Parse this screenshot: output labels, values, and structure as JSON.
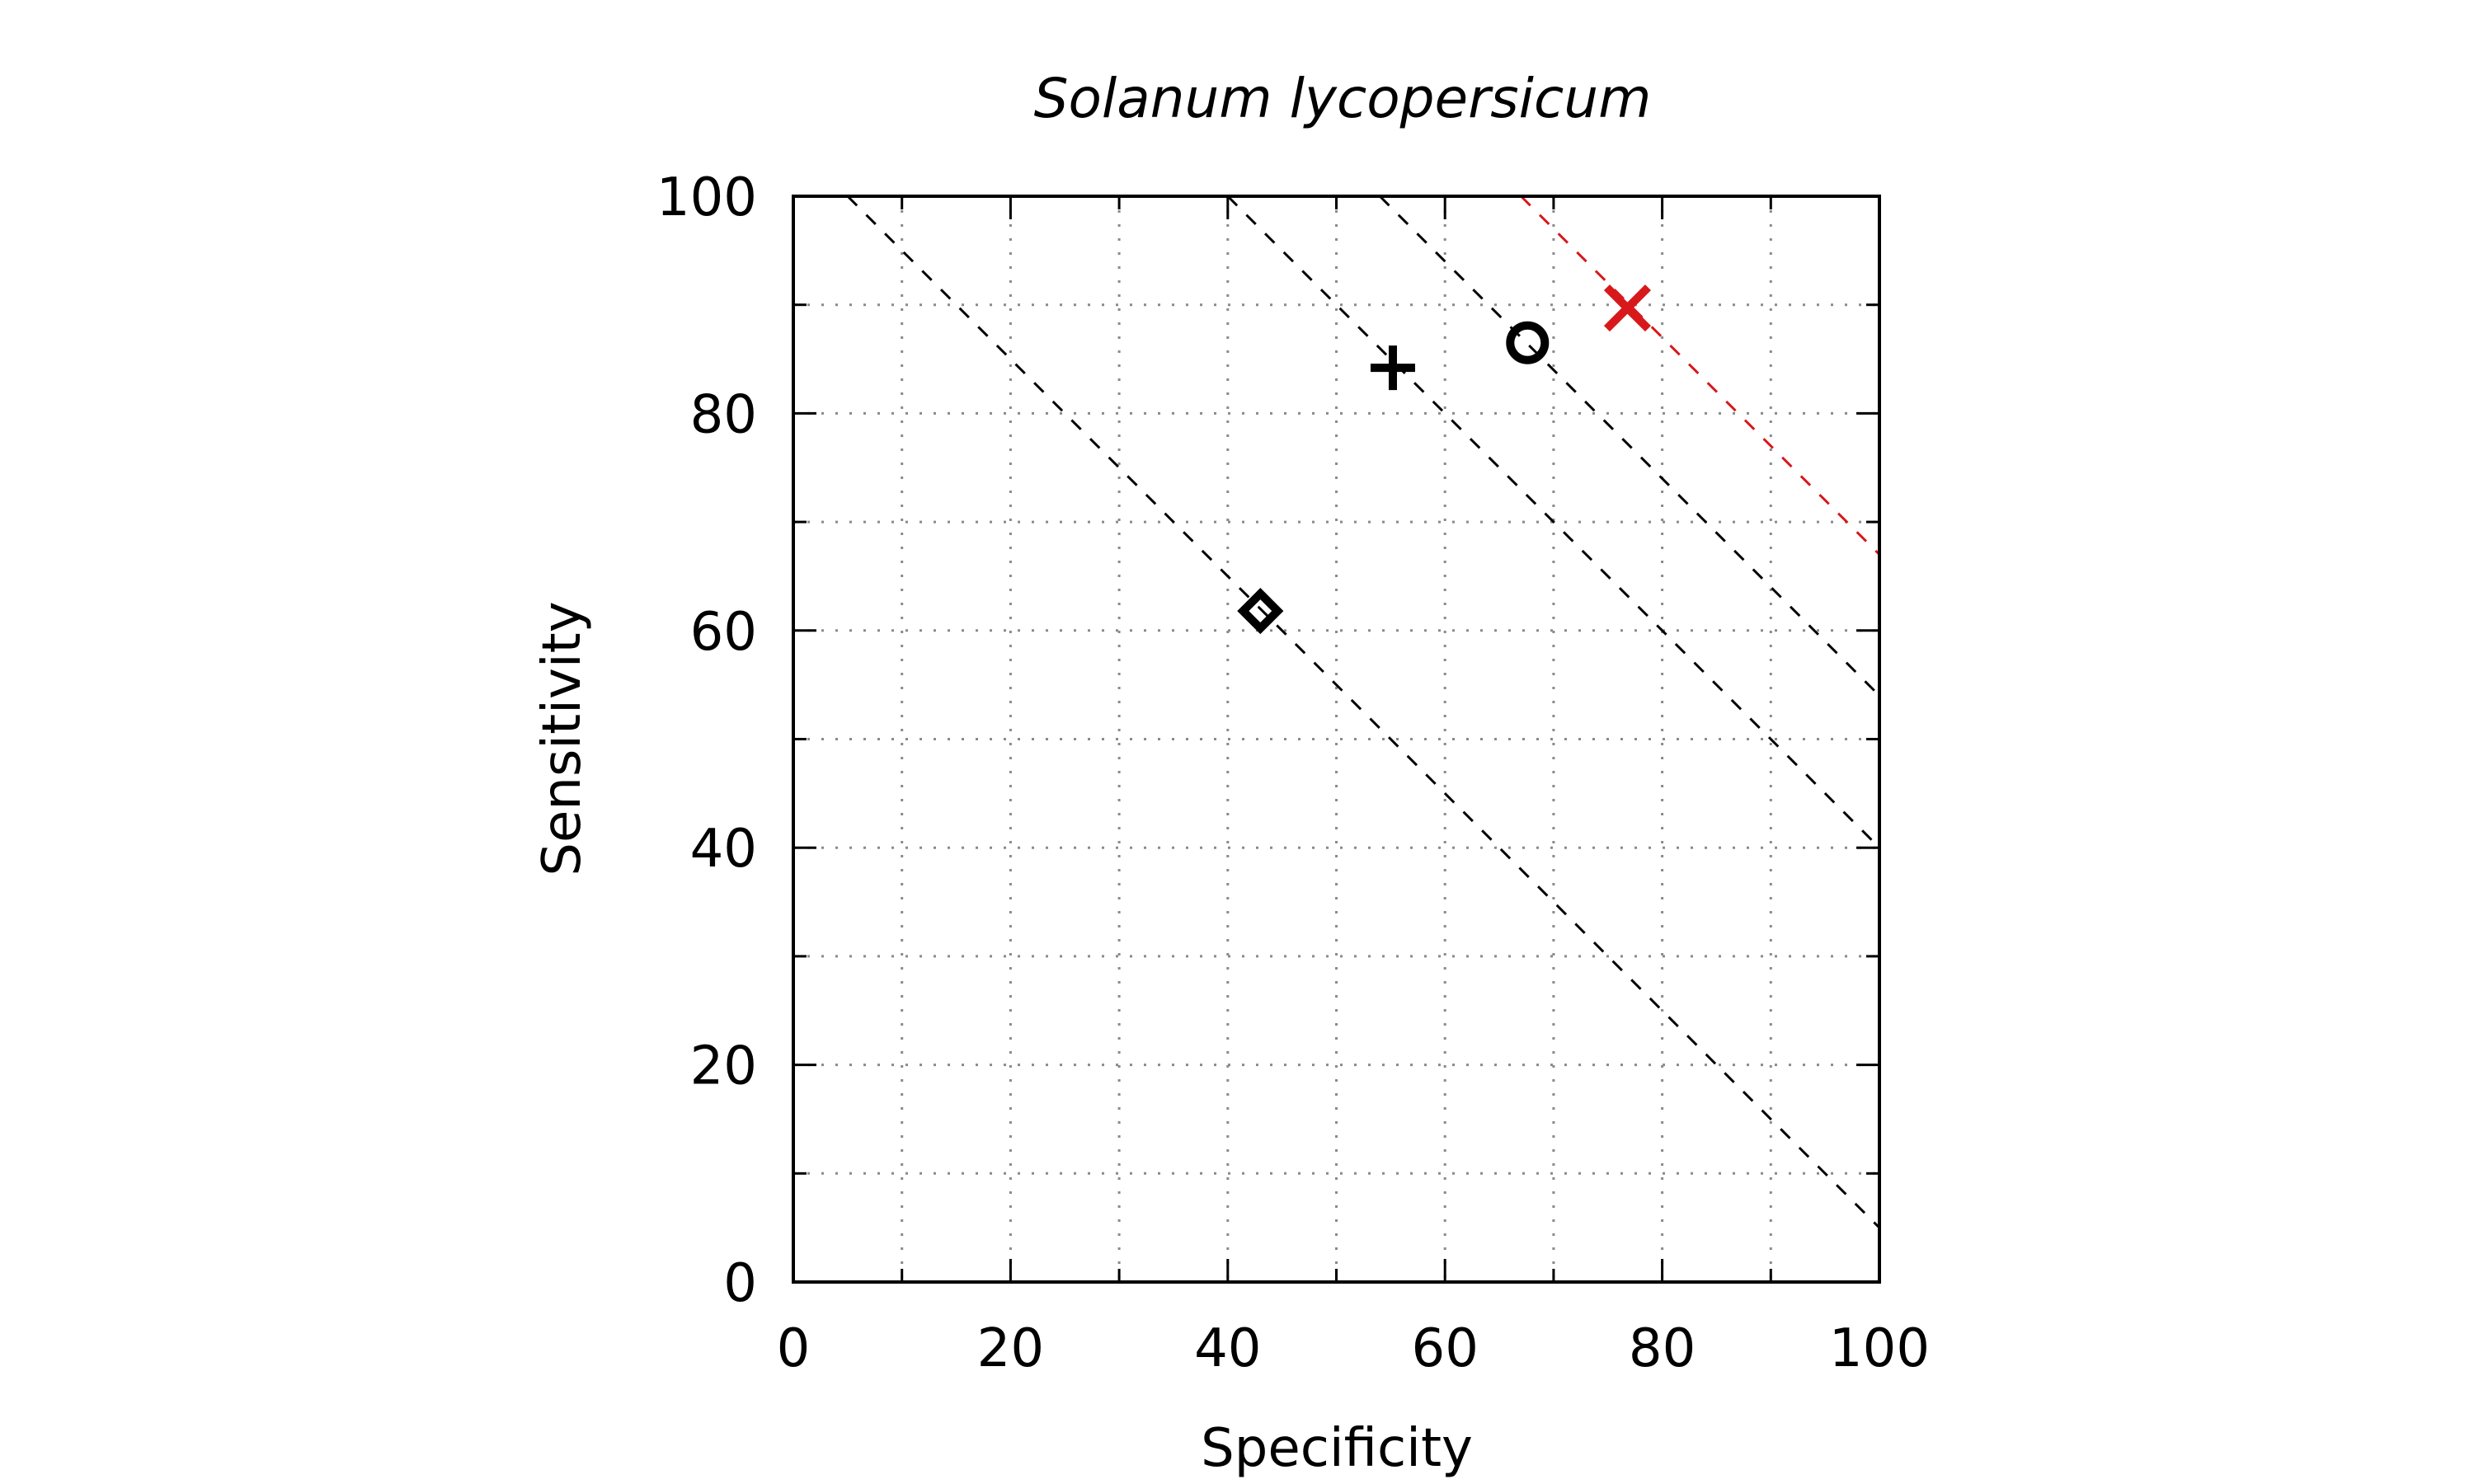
{
  "chart_data": {
    "type": "scatter",
    "title": "Solanum lycopersicum",
    "xlabel": "Specificity",
    "ylabel": "Sensitivity",
    "xlim": [
      0,
      100
    ],
    "ylim": [
      0,
      100
    ],
    "x_ticks": [
      0,
      20,
      40,
      60,
      80,
      100
    ],
    "y_ticks": [
      0,
      20,
      40,
      60,
      80,
      100
    ],
    "x_minor_ticks": [
      10,
      30,
      50,
      70,
      90
    ],
    "y_minor_ticks": [
      10,
      30,
      50,
      70,
      90
    ],
    "grid": true,
    "legend": "none",
    "points": [
      {
        "x": 43,
        "y": 61.8,
        "marker": "diamond",
        "color": "#000000"
      },
      {
        "x": 55.2,
        "y": 84.2,
        "marker": "plus",
        "color": "#000000"
      },
      {
        "x": 67.6,
        "y": 86.5,
        "marker": "circle",
        "color": "#000000"
      },
      {
        "x": 76.8,
        "y": 89.7,
        "marker": "cross",
        "color": "#d7191c"
      }
    ],
    "reference_lines": [
      {
        "points": [
          [
            5,
            100
          ],
          [
            100,
            5
          ]
        ],
        "color": "#000000",
        "style": "dashed"
      },
      {
        "points": [
          [
            40,
            100
          ],
          [
            100,
            40
          ]
        ],
        "color": "#000000",
        "style": "dashed"
      },
      {
        "points": [
          [
            54,
            100
          ],
          [
            100,
            54
          ]
        ],
        "color": "#000000",
        "style": "dashed"
      },
      {
        "points": [
          [
            67,
            100
          ],
          [
            100,
            67
          ]
        ],
        "color": "#d7191c",
        "style": "dashed"
      }
    ]
  }
}
